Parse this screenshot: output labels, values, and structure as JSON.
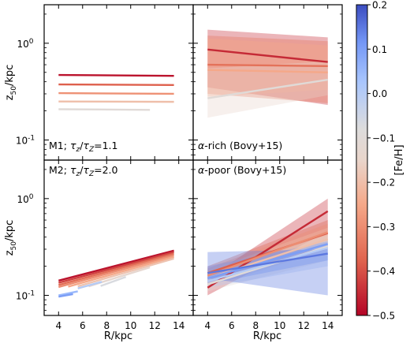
{
  "chart_data": {
    "type": "line",
    "xlabel": "R/kpc",
    "ylabel": "z_50/kpc",
    "ylabel_parts": {
      "base": "z",
      "sub": "50",
      "rest": "/kpc"
    },
    "x_ticks": [
      4,
      6,
      8,
      10,
      12,
      14
    ],
    "xlim": [
      2.8,
      15.2
    ],
    "ylim": [
      0.062,
      2.5
    ],
    "y_scale": "log",
    "y_ticks": [
      {
        "value": 0.1,
        "base": "10",
        "exp": "-1"
      },
      {
        "value": 1.0,
        "base": "10",
        "exp": "0"
      }
    ],
    "colorbar": {
      "label": "[Fe/H]",
      "range": [
        -0.5,
        0.2
      ],
      "colormap": "coolwarm_r",
      "ticks": [
        "0.2",
        "0.1",
        "0.0",
        "−0.1",
        "−0.2",
        "−0.3",
        "−0.4",
        "−0.5"
      ],
      "tick_values": [
        0.2,
        0.1,
        0.0,
        -0.1,
        -0.2,
        -0.3,
        -0.4,
        -0.5
      ]
    },
    "panels": [
      {
        "id": "m1",
        "label_parts": [
          "M1; ",
          "τ",
          "z",
          "/",
          "τ",
          "Z",
          "=1.1"
        ],
        "bands": [],
        "series": [
          {
            "feh": -0.48,
            "x": [
              4,
              13.6
            ],
            "y": [
              0.47,
              0.46
            ]
          },
          {
            "feh": -0.38,
            "x": [
              4,
              13.6
            ],
            "y": [
              0.375,
              0.37
            ]
          },
          {
            "feh": -0.29,
            "x": [
              4,
              13.6
            ],
            "y": [
              0.305,
              0.3
            ]
          },
          {
            "feh": -0.2,
            "x": [
              4,
              13.6
            ],
            "y": [
              0.25,
              0.248
            ]
          },
          {
            "feh": -0.1,
            "x": [
              4,
              11.6
            ],
            "y": [
              0.208,
              0.205
            ]
          }
        ]
      },
      {
        "id": "alpha-rich",
        "label_parts": [
          "α",
          "-rich (Bovy+15)"
        ],
        "bands": [
          {
            "feh": -0.45,
            "x": [
              4,
              14
            ],
            "lo": [
              0.35,
              0.23
            ],
            "hi": [
              1.38,
              1.15
            ]
          },
          {
            "feh": -0.35,
            "x": [
              4,
              14
            ],
            "lo": [
              0.3,
              0.24
            ],
            "hi": [
              1.2,
              1.05
            ]
          },
          {
            "feh": -0.25,
            "x": [
              4,
              14
            ],
            "lo": [
              0.28,
              0.33
            ],
            "hi": [
              1.12,
              0.95
            ]
          },
          {
            "feh": -0.15,
            "x": [
              4,
              14
            ],
            "lo": [
              0.17,
              0.29
            ],
            "hi": [
              0.55,
              0.65
            ]
          }
        ],
        "series": [
          {
            "feh": -0.45,
            "x": [
              4,
              14
            ],
            "y": [
              0.86,
              0.64
            ]
          },
          {
            "feh": -0.35,
            "x": [
              4,
              14
            ],
            "y": [
              0.6,
              0.58
            ]
          },
          {
            "feh": -0.25,
            "x": [
              4,
              14
            ],
            "y": [
              0.53,
              0.5
            ]
          },
          {
            "feh": -0.1,
            "x": [
              4,
              14
            ],
            "y": [
              0.27,
              0.42
            ]
          }
        ]
      },
      {
        "id": "m2",
        "label_parts": [
          "M2; ",
          "τ",
          "z",
          "/",
          "τ",
          "Z",
          "=2.0"
        ],
        "bands": [],
        "series": [
          {
            "feh": -0.48,
            "x": [
              4,
              13.6
            ],
            "y": [
              0.142,
              0.29
            ]
          },
          {
            "feh": -0.42,
            "x": [
              4,
              13.6
            ],
            "y": [
              0.135,
              0.28
            ]
          },
          {
            "feh": -0.36,
            "x": [
              4,
              13.6
            ],
            "y": [
              0.128,
              0.27
            ]
          },
          {
            "feh": -0.3,
            "x": [
              4,
              13.6
            ],
            "y": [
              0.122,
              0.26
            ]
          },
          {
            "feh": -0.25,
            "x": [
              4.8,
              13.6
            ],
            "y": [
              0.123,
              0.25
            ]
          },
          {
            "feh": -0.19,
            "x": [
              5.6,
              13.6
            ],
            "y": [
              0.124,
              0.24
            ]
          },
          {
            "feh": -0.13,
            "x": [
              6.5,
              11.6
            ],
            "y": [
              0.124,
              0.195
            ]
          },
          {
            "feh": -0.07,
            "x": [
              7.5,
              9.6
            ],
            "y": [
              0.125,
              0.155
            ]
          },
          {
            "feh": 0.0,
            "x": [
              5.6,
              7.6
            ],
            "y": [
              0.118,
              0.138
            ]
          },
          {
            "feh": 0.05,
            "x": [
              4,
              5.6
            ],
            "y": [
              0.1,
              0.11
            ]
          },
          {
            "feh": 0.1,
            "x": [
              4,
              5.2
            ],
            "y": [
              0.097,
              0.103
            ]
          }
        ]
      },
      {
        "id": "alpha-poor",
        "label_parts": [
          "α",
          "-poor (Bovy+15)"
        ],
        "bands": [
          {
            "feh": -0.45,
            "x": [
              4,
              14
            ],
            "lo": [
              0.1,
              0.46
            ],
            "hi": [
              0.15,
              1.0
            ]
          },
          {
            "feh": -0.38,
            "x": [
              4,
              14
            ],
            "lo": [
              0.15,
              0.3
            ],
            "hi": [
              0.2,
              0.6
            ]
          },
          {
            "feh": -0.3,
            "x": [
              4,
              14
            ],
            "lo": [
              0.13,
              0.35
            ],
            "hi": [
              0.19,
              0.55
            ]
          },
          {
            "feh": -0.2,
            "x": [
              4,
              14
            ],
            "lo": [
              0.12,
              0.3
            ],
            "hi": [
              0.18,
              0.5
            ]
          },
          {
            "feh": -0.1,
            "x": [
              4,
              14
            ],
            "lo": [
              0.11,
              0.23
            ],
            "hi": [
              0.17,
              0.42
            ]
          },
          {
            "feh": 0.0,
            "x": [
              4,
              14
            ],
            "lo": [
              0.12,
              0.2
            ],
            "hi": [
              0.16,
              0.38
            ]
          },
          {
            "feh": 0.1,
            "x": [
              4,
              14
            ],
            "lo": [
              0.13,
              0.23
            ],
            "hi": [
              0.2,
              0.36
            ]
          },
          {
            "feh": 0.15,
            "x": [
              4,
              14
            ],
            "lo": [
              0.15,
              0.1
            ],
            "hi": [
              0.28,
              0.3
            ]
          }
        ],
        "series": [
          {
            "feh": -0.45,
            "x": [
              4,
              14
            ],
            "y": [
              0.12,
              0.74
            ]
          },
          {
            "feh": -0.38,
            "x": [
              4,
              14
            ],
            "y": [
              0.17,
              0.44
            ]
          },
          {
            "feh": -0.3,
            "x": [
              4,
              14
            ],
            "y": [
              0.16,
              0.45
            ]
          },
          {
            "feh": -0.2,
            "x": [
              4,
              14
            ],
            "y": [
              0.15,
              0.38
            ]
          },
          {
            "feh": -0.1,
            "x": [
              4,
              14
            ],
            "y": [
              0.13,
              0.32
            ]
          },
          {
            "feh": 0.0,
            "x": [
              4,
              14
            ],
            "y": [
              0.14,
              0.31
            ]
          },
          {
            "feh": 0.1,
            "x": [
              4,
              14
            ],
            "y": [
              0.15,
              0.34
            ]
          },
          {
            "feh": 0.15,
            "x": [
              4,
              14
            ],
            "y": [
              0.17,
              0.27
            ]
          }
        ]
      }
    ]
  }
}
